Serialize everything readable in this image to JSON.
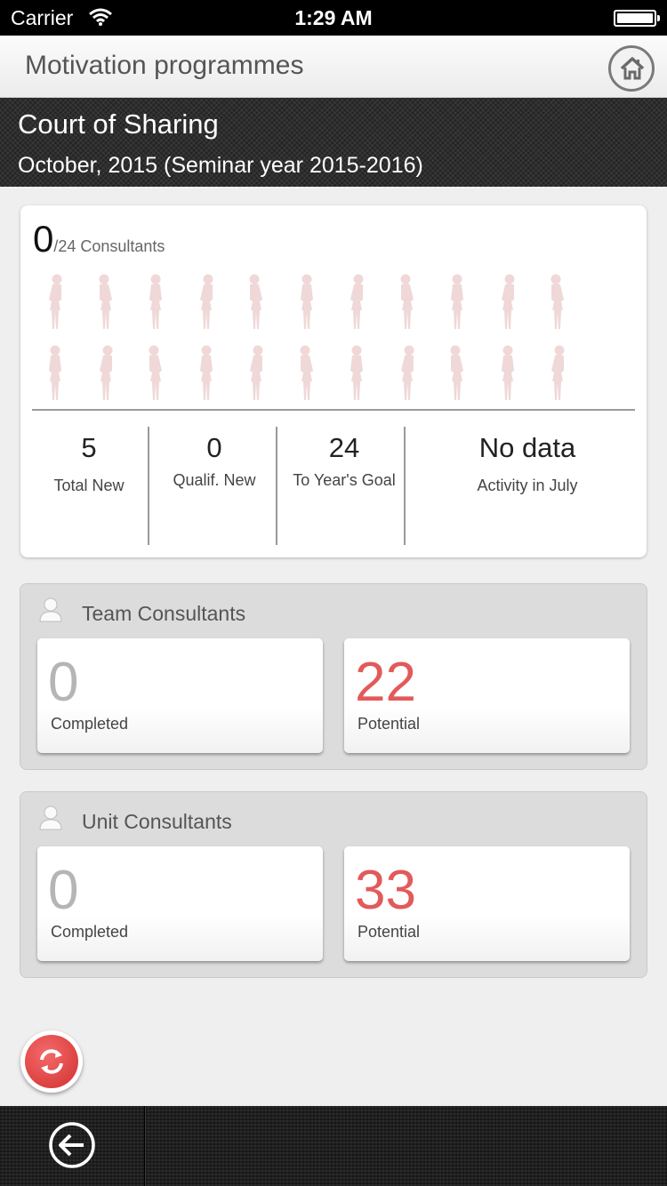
{
  "status_bar": {
    "carrier": "Carrier",
    "time": "1:29 AM"
  },
  "nav": {
    "title": "Motivation programmes",
    "home_icon": "home-icon"
  },
  "header": {
    "program_title": "Court of Sharing",
    "period": "October, 2015 (Seminar year 2015-2016)"
  },
  "summary": {
    "achieved": "0",
    "total_label": "/24 Consultants",
    "figure_count": 22,
    "stats": [
      {
        "value": "5",
        "label": "Total New"
      },
      {
        "value": "0",
        "label": "Qualif. New"
      },
      {
        "value": "24",
        "label": "To Year's Goal"
      },
      {
        "value": "No data",
        "label": "Activity in July"
      }
    ]
  },
  "groups": [
    {
      "title": "Team Consultants",
      "completed": {
        "value": "0",
        "label": "Completed"
      },
      "potential": {
        "value": "22",
        "label": "Potential"
      }
    },
    {
      "title": "Unit Consultants",
      "completed": {
        "value": "0",
        "label": "Completed"
      },
      "potential": {
        "value": "33",
        "label": "Potential"
      }
    }
  ],
  "colors": {
    "accent_red": "#e25a5a",
    "figure_pink": "#f0d8d8"
  }
}
